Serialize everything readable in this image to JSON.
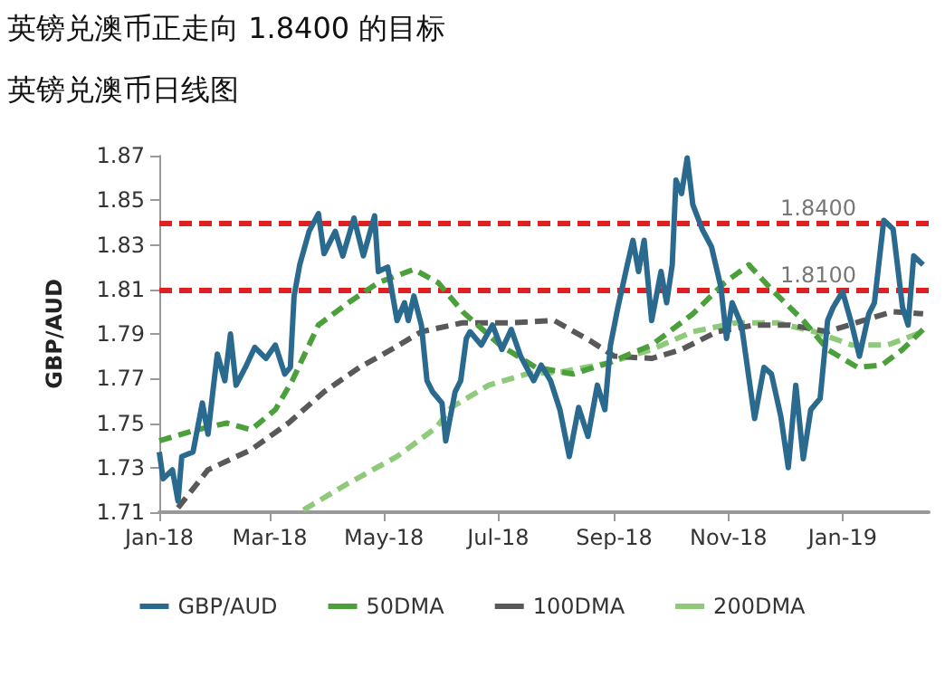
{
  "chart_data": {
    "type": "line",
    "title": "英镑兑澳币正走向 1.8400 的目标",
    "subtitle": "英镑兑澳币日线图",
    "ylabel": "GBP/AUD",
    "xlim": [
      "2018-01-01",
      "2019-02-16"
    ],
    "xticks": [
      {
        "value": "2018-01-01",
        "label": "Jan-18"
      },
      {
        "value": "2018-03-01",
        "label": "Mar-18"
      },
      {
        "value": "2018-05-01",
        "label": "May-18"
      },
      {
        "value": "2018-07-01",
        "label": "Jul-18"
      },
      {
        "value": "2018-09-01",
        "label": "Sep-18"
      },
      {
        "value": "2018-11-01",
        "label": "Nov-18"
      },
      {
        "value": "2019-01-01",
        "label": "Jan-19"
      }
    ],
    "ylim": [
      1.71,
      1.87
    ],
    "yticks": [
      1.71,
      1.73,
      1.75,
      1.77,
      1.79,
      1.81,
      1.83,
      1.85,
      1.87
    ],
    "grid": false,
    "legend": "bottom",
    "marker": "none",
    "ref_lines": [
      {
        "axis": "y",
        "value": 1.84,
        "label": "1.8400",
        "color": "#e02020",
        "line_style": "dashed"
      },
      {
        "axis": "y",
        "value": 1.81,
        "label": "1.8100",
        "color": "#e02020",
        "line_style": "dashed"
      }
    ],
    "series": [
      {
        "name": "GBP/AUD",
        "color": "#2a6a8f",
        "line_style": "solid",
        "x": [
          "2018-01-01",
          "2018-01-03",
          "2018-01-08",
          "2018-01-11",
          "2018-01-13",
          "2018-01-19",
          "2018-01-24",
          "2018-01-27",
          "2018-01-30",
          "2018-02-01",
          "2018-02-05",
          "2018-02-08",
          "2018-02-11",
          "2018-02-16",
          "2018-02-21",
          "2018-02-27",
          "2018-03-04",
          "2018-03-09",
          "2018-03-12",
          "2018-03-14",
          "2018-03-17",
          "2018-03-22",
          "2018-03-27",
          "2018-03-30",
          "2018-04-05",
          "2018-04-09",
          "2018-04-15",
          "2018-04-20",
          "2018-04-26",
          "2018-04-28",
          "2018-05-03",
          "2018-05-08",
          "2018-05-12",
          "2018-05-14",
          "2018-05-17",
          "2018-05-21",
          "2018-05-24",
          "2018-05-27",
          "2018-06-01",
          "2018-06-03",
          "2018-06-08",
          "2018-06-11",
          "2018-06-14",
          "2018-06-16",
          "2018-06-22",
          "2018-06-28",
          "2018-07-03",
          "2018-07-08",
          "2018-07-13",
          "2018-07-20",
          "2018-07-24",
          "2018-07-29",
          "2018-08-03",
          "2018-08-08",
          "2018-08-13",
          "2018-08-18",
          "2018-08-23",
          "2018-08-27",
          "2018-08-30",
          "2018-09-03",
          "2018-09-08",
          "2018-09-11",
          "2018-09-14",
          "2018-09-17",
          "2018-09-21",
          "2018-09-26",
          "2018-09-29",
          "2018-10-02",
          "2018-10-04",
          "2018-10-07",
          "2018-10-10",
          "2018-10-13",
          "2018-10-18",
          "2018-10-23",
          "2018-10-28",
          "2018-10-31",
          "2018-11-03",
          "2018-11-08",
          "2018-11-15",
          "2018-11-20",
          "2018-11-24",
          "2018-11-29",
          "2018-12-03",
          "2018-12-07",
          "2018-12-11",
          "2018-12-15",
          "2018-12-20",
          "2018-12-24",
          "2018-12-27",
          "2019-01-01",
          "2019-01-06",
          "2019-01-10",
          "2019-01-15",
          "2019-01-18",
          "2019-01-23",
          "2019-01-28",
          "2019-02-02",
          "2019-02-05",
          "2019-02-08",
          "2019-02-13"
        ],
        "values": [
          1.737,
          1.725,
          1.729,
          1.715,
          1.735,
          1.737,
          1.759,
          1.745,
          1.767,
          1.781,
          1.769,
          1.79,
          1.767,
          1.775,
          1.784,
          1.779,
          1.785,
          1.772,
          1.775,
          1.807,
          1.821,
          1.836,
          1.844,
          1.826,
          1.836,
          1.825,
          1.842,
          1.825,
          1.843,
          1.818,
          1.82,
          1.796,
          1.804,
          1.796,
          1.807,
          1.794,
          1.769,
          1.764,
          1.759,
          1.742,
          1.764,
          1.769,
          1.788,
          1.791,
          1.785,
          1.794,
          1.783,
          1.792,
          1.78,
          1.769,
          1.776,
          1.769,
          1.756,
          1.735,
          1.757,
          1.744,
          1.767,
          1.756,
          1.785,
          1.802,
          1.821,
          1.832,
          1.818,
          1.832,
          1.796,
          1.818,
          1.804,
          1.821,
          1.859,
          1.853,
          1.869,
          1.848,
          1.837,
          1.829,
          1.811,
          1.788,
          1.804,
          1.794,
          1.752,
          1.775,
          1.772,
          1.753,
          1.73,
          1.767,
          1.734,
          1.756,
          1.761,
          1.796,
          1.802,
          1.809,
          1.794,
          1.78,
          1.799,
          1.804,
          1.841,
          1.837,
          1.802,
          1.794,
          1.825,
          1.821
        ]
      },
      {
        "name": "50DMA",
        "color": "#4ca03c",
        "line_style": "dashed",
        "x": [
          "2018-01-01",
          "2018-01-21",
          "2018-02-06",
          "2018-02-19",
          "2018-03-04",
          "2018-03-13",
          "2018-03-27",
          "2018-04-12",
          "2018-04-28",
          "2018-05-17",
          "2018-05-30",
          "2018-06-12",
          "2018-07-02",
          "2018-07-21",
          "2018-08-10",
          "2018-08-29",
          "2018-09-21",
          "2018-10-13",
          "2018-10-30",
          "2018-11-12",
          "2018-11-24",
          "2018-12-11",
          "2018-12-24",
          "2019-01-09",
          "2019-01-22",
          "2019-02-02",
          "2019-02-13"
        ],
        "values": [
          1.742,
          1.747,
          1.75,
          1.747,
          1.756,
          1.769,
          1.794,
          1.804,
          1.813,
          1.819,
          1.813,
          1.8,
          1.785,
          1.775,
          1.772,
          1.777,
          1.785,
          1.799,
          1.813,
          1.821,
          1.81,
          1.796,
          1.783,
          1.775,
          1.776,
          1.783,
          1.792
        ]
      },
      {
        "name": "100DMA",
        "color": "#595959",
        "line_style": "dashed",
        "x": [
          "2018-01-11",
          "2018-01-27",
          "2018-02-19",
          "2018-03-11",
          "2018-03-30",
          "2018-04-18",
          "2018-05-05",
          "2018-05-21",
          "2018-06-12",
          "2018-07-08",
          "2018-07-31",
          "2018-08-19",
          "2018-09-01",
          "2018-09-21",
          "2018-10-07",
          "2018-10-26",
          "2018-11-15",
          "2018-12-04",
          "2018-12-24",
          "2019-01-12",
          "2019-01-28",
          "2019-02-13"
        ],
        "values": [
          1.712,
          1.729,
          1.738,
          1.75,
          1.764,
          1.775,
          1.783,
          1.791,
          1.795,
          1.795,
          1.796,
          1.787,
          1.78,
          1.779,
          1.783,
          1.791,
          1.794,
          1.794,
          1.791,
          1.796,
          1.8,
          1.799
        ]
      },
      {
        "name": "200DMA",
        "color": "#8fc97a",
        "line_style": "dashed",
        "x": [
          "2018-03-19",
          "2018-04-12",
          "2018-05-08",
          "2018-05-29",
          "2018-06-06",
          "2018-06-26",
          "2018-07-16",
          "2018-08-04",
          "2018-08-29",
          "2018-09-21",
          "2018-10-13",
          "2018-11-05",
          "2018-11-27",
          "2018-12-17",
          "2019-01-06",
          "2019-01-25",
          "2019-02-13"
        ],
        "values": [
          1.711,
          1.723,
          1.735,
          1.748,
          1.757,
          1.767,
          1.772,
          1.773,
          1.777,
          1.783,
          1.791,
          1.795,
          1.795,
          1.791,
          1.785,
          1.785,
          1.791
        ]
      }
    ]
  }
}
